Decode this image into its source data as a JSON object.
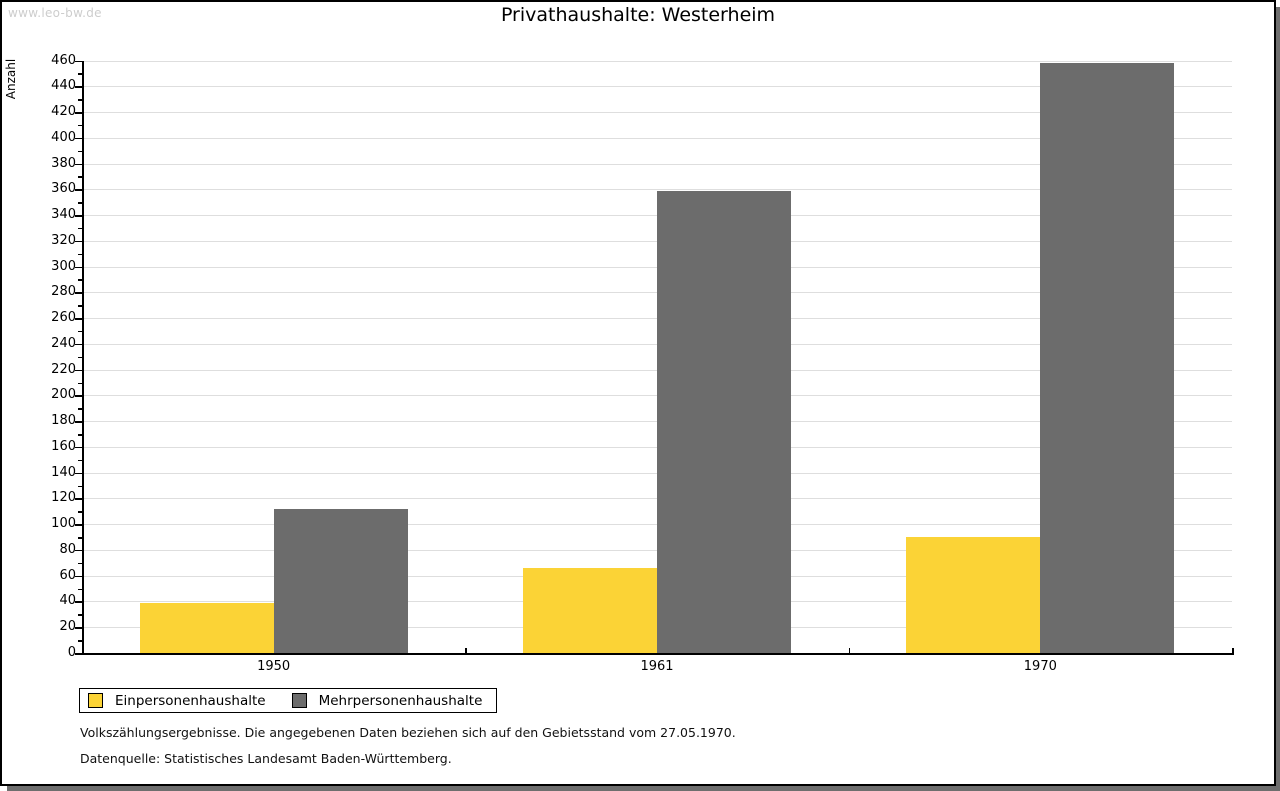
{
  "watermark": "www.leo-bw.de",
  "title": "Privathaushalte: Westerheim",
  "y_axis_title": "Anzahl",
  "chart_data": {
    "type": "bar",
    "title": "Privathaushalte: Westerheim",
    "categories": [
      "1950",
      "1961",
      "1970"
    ],
    "series": [
      {
        "name": "Einpersonenhaushalte",
        "color": "#fbd336",
        "values": [
          39,
          66,
          90
        ]
      },
      {
        "name": "Mehrpersonenhaushalte",
        "color": "#6c6c6c",
        "values": [
          112,
          359,
          458
        ]
      }
    ],
    "xlabel": "",
    "ylabel": "Anzahl",
    "ylim": [
      0,
      460
    ],
    "ytick_step": 20,
    "y_minor_tick_step": 10,
    "grid": true,
    "gridline_color": "#dedede",
    "legend_position": "bottom-left"
  },
  "footnotes": {
    "line1": "Volkszählungsergebnisse. Die angegebenen Daten beziehen sich auf den Gebietsstand vom 27.05.1970.",
    "line2": "Datenquelle: Statistisches Landesamt Baden-Württemberg."
  }
}
